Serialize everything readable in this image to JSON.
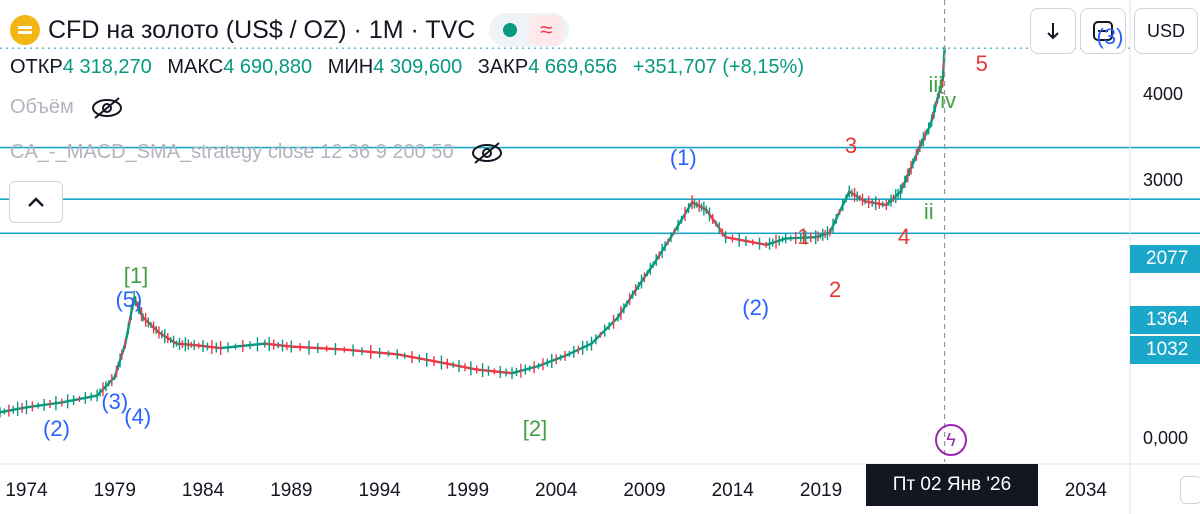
{
  "header": {
    "title": "CFD на золото (US$ / OZ) · 1M · TVC",
    "ohlc": {
      "open_label": "ОТКР",
      "open": "4 318,270",
      "high_label": "МАКС",
      "high": "4 690,880",
      "low_label": "МИН",
      "low": "4 309,600",
      "close_label": "ЗАКР",
      "close": "4 669,656",
      "change": "+351,707 (+8,15%)"
    },
    "volume_label": "Объём",
    "strategy_label": "CA_-_MACD_SMA_strategy close 12 36 9 200 50"
  },
  "toolbar": {
    "currency": "USD",
    "icons": [
      "chevron-up-icon",
      "arrow-down-icon",
      "fullscreen-icon",
      "flash-icon"
    ]
  },
  "chart_data": {
    "type": "line",
    "title": "CFD на золото (US$ / OZ) · 1M · TVC",
    "y_scale": "log",
    "ylim": [
      160,
      5200
    ],
    "xlim": [
      1972.5,
      2036.5
    ],
    "y_ticks": [
      "4000",
      "3000"
    ],
    "y_tick_values": [
      4000,
      3000
    ],
    "y_zero_label": "0,000",
    "x_ticks": [
      "1974",
      "1979",
      "1984",
      "1989",
      "1994",
      "1999",
      "2004",
      "2009",
      "2014",
      "2019",
      "2034"
    ],
    "x_tick_values": [
      1974,
      1979,
      1984,
      1989,
      1994,
      1999,
      2004,
      2009,
      2014,
      2019,
      2034
    ],
    "crosshair_label": "Пт 02 Янв '26",
    "crosshair_x": 2026.0,
    "horizontal_levels": [
      {
        "label": "2077",
        "value": 2077
      },
      {
        "label": "1364",
        "value": 1364
      },
      {
        "label": "1032",
        "value": 1032
      }
    ],
    "price_line": {
      "value": 4669.656
    },
    "series": [
      {
        "x": [
          1972.5,
          1974,
          1976,
          1978,
          1979,
          1979.6,
          1980.1,
          1980.6,
          1981.5,
          1982.5,
          1983.5,
          1985,
          1987.5,
          1989,
          1992,
          1995,
          1997.5,
          1999.5,
          2001.5,
          2003,
          2004.5,
          2006,
          2007.5,
          2008.5,
          2009.5,
          2010.5,
          2011.7,
          2012.5,
          2013.6,
          2015.9,
          2017,
          2018.7,
          2019.5,
          2020.6,
          2021.5,
          2022.7,
          2023.5,
          2024,
          2024.6,
          2025.2,
          2025.6,
          2025.9,
          2026.0
        ],
        "y": [
          240,
          250,
          260,
          275,
          320,
          420,
          610,
          520,
          460,
          420,
          415,
          405,
          420,
          410,
          400,
          385,
          360,
          340,
          330,
          350,
          380,
          420,
          520,
          650,
          800,
          1000,
          1330,
          1250,
          1000,
          940,
          990,
          1000,
          1040,
          1450,
          1340,
          1300,
          1450,
          1700,
          2100,
          2500,
          3100,
          3600,
          4670
        ]
      }
    ],
    "annotations": [
      {
        "text": "(5)",
        "x": 1979.8,
        "y": 600,
        "color": "blue"
      },
      {
        "text": "[1]",
        "x": 1980.2,
        "y": 730,
        "color": "green"
      },
      {
        "text": "(3)",
        "x": 1979.0,
        "y": 260,
        "color": "blue"
      },
      {
        "text": "(4)",
        "x": 1980.3,
        "y": 230,
        "color": "blue"
      },
      {
        "text": "(2)",
        "x": 1975.7,
        "y": 210,
        "color": "blue"
      },
      {
        "text": "[2]",
        "x": 2002.8,
        "y": 210,
        "color": "green"
      },
      {
        "text": "(1)",
        "x": 2011.2,
        "y": 1900,
        "color": "blue"
      },
      {
        "text": "(2)",
        "x": 2015.3,
        "y": 560,
        "color": "blue"
      },
      {
        "text": "1",
        "x": 2018.0,
        "y": 1000,
        "color": "red"
      },
      {
        "text": "2",
        "x": 2019.8,
        "y": 650,
        "color": "red"
      },
      {
        "text": "3",
        "x": 2020.7,
        "y": 2100,
        "color": "red"
      },
      {
        "text": "4",
        "x": 2023.7,
        "y": 1000,
        "color": "red"
      },
      {
        "text": "ii",
        "x": 2025.1,
        "y": 1230,
        "color": "green"
      },
      {
        "text": "iii",
        "x": 2025.5,
        "y": 3450,
        "color": "green"
      },
      {
        "text": "iv",
        "x": 2026.2,
        "y": 3040,
        "color": "green"
      },
      {
        "text": "5",
        "x": 2028.1,
        "y": 4100,
        "color": "red"
      },
      {
        "text": "(3)",
        "x": 2037.0,
        "y": 5100,
        "color": "blue"
      }
    ]
  }
}
